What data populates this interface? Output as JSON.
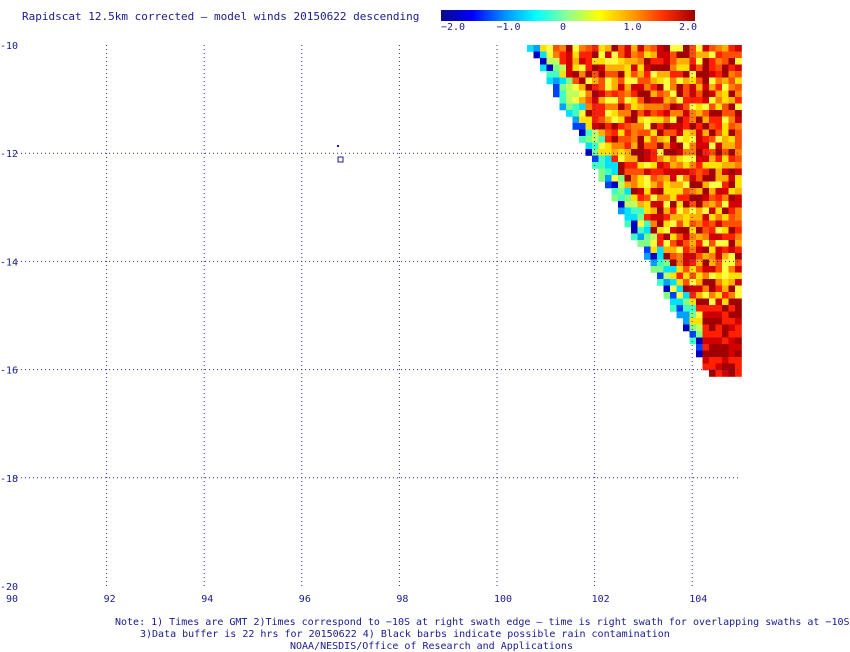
{
  "title": "Rapidscat 12.5km corrected – model winds 20150622 descending",
  "colorbar": {
    "ticks": [
      "−2.0",
      "−1.0",
      "0",
      "1.0",
      "2.0"
    ],
    "tick_values": [
      -2.0,
      -1.0,
      0,
      1.0,
      2.0
    ],
    "range": [
      -2.0,
      2.0
    ],
    "colors": [
      "#0a0a8c",
      "#0000ff",
      "#0090ff",
      "#00ffff",
      "#90ff90",
      "#ffff00",
      "#ffa000",
      "#ff3000",
      "#a00000"
    ]
  },
  "map": {
    "lon_range": [
      90,
      105
    ],
    "lat_range": [
      -20,
      -10
    ],
    "x_ticks": [
      "90",
      "92",
      "94",
      "96",
      "98",
      "100",
      "102",
      "104"
    ],
    "x_tick_values": [
      90,
      92,
      94,
      96,
      98,
      100,
      102,
      104
    ],
    "y_ticks": [
      "-10",
      "-12",
      "-14",
      "-16",
      "-18",
      "-20"
    ],
    "y_tick_values": [
      -10,
      -12,
      -14,
      -16,
      -18,
      -20
    ],
    "grid": true,
    "grid_style": "dotted"
  },
  "notes": {
    "line1": "Note: 1) Times are GMT 2)Times correspond to −10S at right swath edge – time is right swath for overlapping swaths at −10S",
    "line2": "3)Data buffer is 22 hrs for 20150622 4) Black barbs indicate possible rain contamination",
    "line3": "NOAA/NESDIS/Office of Research and Applications"
  }
}
